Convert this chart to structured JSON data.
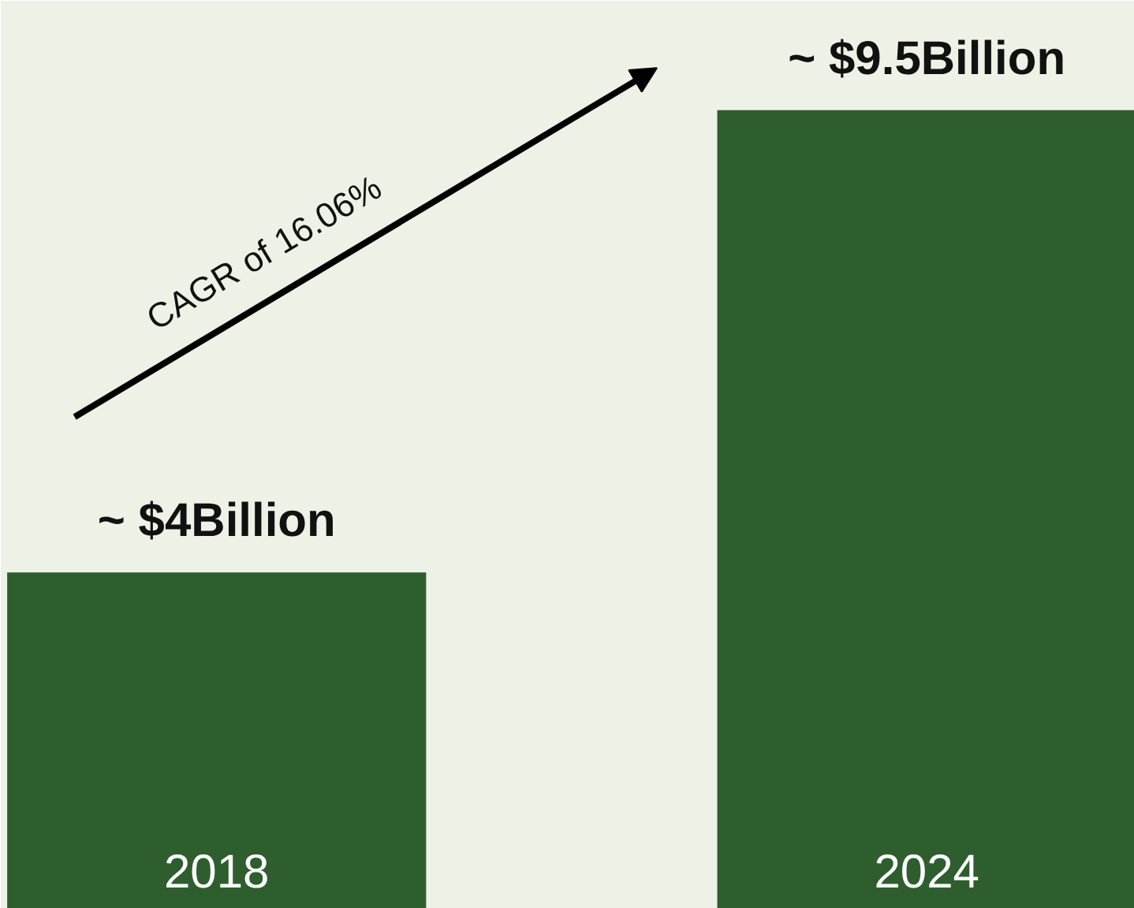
{
  "chart_data": {
    "type": "bar",
    "categories": [
      "2018",
      "2024"
    ],
    "values": [
      4,
      9.5
    ],
    "value_labels": [
      "~ $4Billion",
      "~ $9.5Billion"
    ],
    "color": "#2e5e2e",
    "ylim": [
      0,
      10.8
    ],
    "annotations": [
      "CAGR of 16.06%"
    ],
    "grid": false
  }
}
